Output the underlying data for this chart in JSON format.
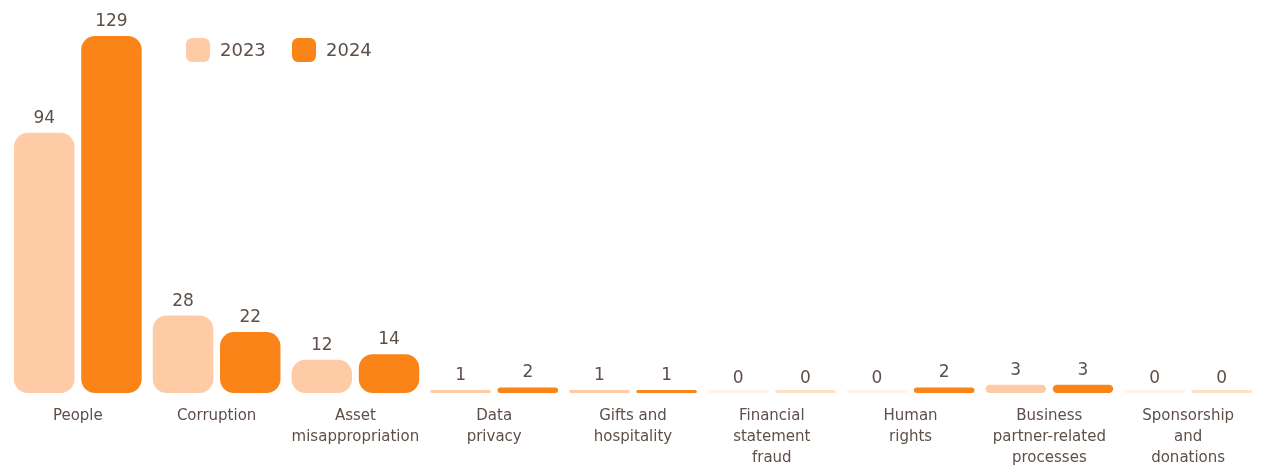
{
  "chart_data": {
    "type": "bar",
    "categories": [
      "People",
      "Corruption",
      "Asset misappropriation",
      "Data privacy",
      "Gifts and hospitality",
      "Financial statement fraud",
      "Human rights",
      "Business partner-related processes",
      "Sponsorship and donations"
    ],
    "series": [
      {
        "name": "2023",
        "color": "#fdcba6",
        "values": [
          94,
          28,
          12,
          1,
          1,
          0,
          0,
          3,
          0
        ]
      },
      {
        "name": "2024",
        "color": "#fb8419",
        "values": [
          129,
          22,
          14,
          2,
          1,
          0,
          2,
          3,
          0
        ]
      }
    ],
    "data_labels": true,
    "legend": "top"
  }
}
